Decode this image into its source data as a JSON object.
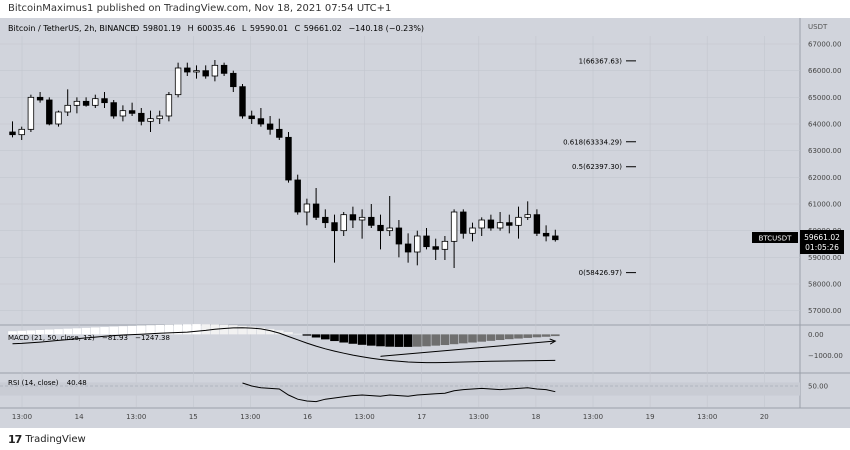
{
  "header": {
    "published": "BitcoinMaximus1 published on TradingView.com, Nov 18, 2021 07:54 UTC+1"
  },
  "chart_data": {
    "type": "candlestick",
    "symbol_line": "Bitcoin / TetherUS, 2h, BINANCE",
    "ohlc": {
      "o_label": "O",
      "o": "59801.19",
      "h_label": "H",
      "h": "60035.46",
      "l_label": "L",
      "l": "59590.01",
      "c_label": "C",
      "c": "59661.02",
      "chg": "−140.18 (−0.23%)"
    },
    "currency": "USDT",
    "price_axis": {
      "ticks": [
        57000,
        58000,
        59000,
        60000,
        61000,
        62000,
        63000,
        64000,
        65000,
        66000,
        67000
      ],
      "labels": [
        "57000.00",
        "58000.00",
        "59000.00",
        "60000.00",
        "61000.00",
        "62000.00",
        "63000.00",
        "64000.00",
        "65000.00",
        "66000.00",
        "67000.00"
      ],
      "min": 56500,
      "max": 67300
    },
    "price_tag": {
      "symbol": "BTCUSDT",
      "value": "59661.02",
      "countdown": "01:05:26"
    },
    "fib_levels": [
      {
        "label": "1(66367.63)",
        "price": 66367.63
      },
      {
        "label": "0.618(63334.29)",
        "price": 63334.29
      },
      {
        "label": "0.5(62397.30)",
        "price": 62397.3
      },
      {
        "label": "0(58426.97)",
        "price": 58426.97
      }
    ],
    "time_axis": [
      "13:00",
      "14",
      "13:00",
      "15",
      "13:00",
      "16",
      "13:00",
      "17",
      "13:00",
      "18",
      "13:00",
      "19",
      "13:00",
      "20"
    ],
    "candles": [
      [
        63700,
        64100,
        63500,
        63600
      ],
      [
        63600,
        63900,
        63400,
        63800
      ],
      [
        63800,
        65100,
        63700,
        65000
      ],
      [
        65000,
        65200,
        64800,
        64900
      ],
      [
        64900,
        65000,
        63950,
        64000
      ],
      [
        64000,
        64500,
        63900,
        64450
      ],
      [
        64450,
        65300,
        64300,
        64700
      ],
      [
        64700,
        65000,
        64400,
        64850
      ],
      [
        64850,
        65000,
        64650,
        64700
      ],
      [
        64700,
        65100,
        64600,
        64950
      ],
      [
        64950,
        65200,
        64600,
        64800
      ],
      [
        64800,
        64900,
        64200,
        64300
      ],
      [
        64300,
        64700,
        64100,
        64500
      ],
      [
        64500,
        64800,
        64300,
        64400
      ],
      [
        64400,
        64600,
        63950,
        64100
      ],
      [
        64100,
        64500,
        63700,
        64200
      ],
      [
        64200,
        64500,
        64000,
        64300
      ],
      [
        64300,
        65200,
        64100,
        65100
      ],
      [
        65100,
        66300,
        65000,
        66100
      ],
      [
        66100,
        66300,
        65800,
        65950
      ],
      [
        65950,
        66200,
        65700,
        66000
      ],
      [
        66000,
        66200,
        65700,
        65800
      ],
      [
        65800,
        66400,
        65600,
        66200
      ],
      [
        66200,
        66300,
        65800,
        65900
      ],
      [
        65900,
        66000,
        65200,
        65400
      ],
      [
        65400,
        65500,
        64200,
        64300
      ],
      [
        64300,
        64500,
        64000,
        64200
      ],
      [
        64200,
        64600,
        63900,
        64000
      ],
      [
        64000,
        64300,
        63600,
        63800
      ],
      [
        63800,
        64200,
        63400,
        63500
      ],
      [
        63500,
        63700,
        61800,
        61900
      ],
      [
        61900,
        62100,
        60600,
        60700
      ],
      [
        60700,
        61200,
        60200,
        61000
      ],
      [
        61000,
        61600,
        60400,
        60500
      ],
      [
        60500,
        60800,
        60100,
        60300
      ],
      [
        60300,
        60600,
        58800,
        60000
      ],
      [
        60000,
        60700,
        59800,
        60600
      ],
      [
        60600,
        60900,
        60100,
        60400
      ],
      [
        60400,
        60800,
        59700,
        60500
      ],
      [
        60500,
        61000,
        60100,
        60200
      ],
      [
        60200,
        60600,
        59300,
        60000
      ],
      [
        60000,
        61300,
        59800,
        60100
      ],
      [
        60100,
        60400,
        59000,
        59500
      ],
      [
        59500,
        59900,
        58800,
        59200
      ],
      [
        59200,
        60000,
        58700,
        59800
      ],
      [
        59800,
        60100,
        59300,
        59400
      ],
      [
        59400,
        59700,
        58900,
        59300
      ],
      [
        59300,
        59800,
        58900,
        59600
      ],
      [
        59600,
        60800,
        58600,
        60700
      ],
      [
        60700,
        60800,
        59700,
        59900
      ],
      [
        59900,
        60300,
        59600,
        60100
      ],
      [
        60100,
        60500,
        59800,
        60400
      ],
      [
        60400,
        60600,
        60000,
        60100
      ],
      [
        60100,
        60700,
        60000,
        60300
      ],
      [
        60300,
        60600,
        59900,
        60200
      ],
      [
        60200,
        60900,
        59700,
        60500
      ],
      [
        60500,
        61100,
        60400,
        60600
      ],
      [
        60600,
        60800,
        59800,
        59900
      ],
      [
        59900,
        60200,
        59600,
        59800
      ],
      [
        59801.19,
        60035.46,
        59590.01,
        59661.02
      ]
    ],
    "macd": {
      "label": "MACD (21, 50, close, 12)",
      "value1": "−81.93",
      "value2": "−1247.38",
      "ticks": [
        "0.00",
        "−1000.00"
      ],
      "tick_values": [
        0,
        -1000
      ],
      "range": [
        -1800,
        400
      ],
      "hist": [
        150,
        170,
        190,
        210,
        230,
        250,
        270,
        290,
        310,
        330,
        350,
        370,
        390,
        410,
        430,
        440,
        450,
        460,
        470,
        480,
        490,
        480,
        470,
        460,
        440,
        410,
        370,
        320,
        260,
        190,
        110,
        30,
        -60,
        -150,
        -240,
        -320,
        -390,
        -450,
        -500,
        -540,
        -570,
        -590,
        -600,
        -600,
        -590,
        -570,
        -540,
        -510,
        -470,
        -430,
        -390,
        -350,
        -310,
        -270,
        -230,
        -200,
        -170,
        -140,
        -115,
        -82
      ],
      "line": [
        -450,
        -430,
        -400,
        -370,
        -330,
        -290,
        -250,
        -210,
        -170,
        -130,
        -90,
        -60,
        -30,
        -10,
        10,
        30,
        50,
        70,
        90,
        110,
        150,
        190,
        240,
        280,
        310,
        320,
        300,
        260,
        180,
        60,
        -100,
        -260,
        -420,
        -560,
        -690,
        -800,
        -900,
        -990,
        -1070,
        -1140,
        -1200,
        -1250,
        -1290,
        -1320,
        -1340,
        -1350,
        -1350,
        -1345,
        -1335,
        -1320,
        -1310,
        -1300,
        -1290,
        -1280,
        -1275,
        -1270,
        -1262,
        -1256,
        -1250,
        -1247
      ]
    },
    "macd_annotation": {
      "from": [
        40,
        -1050
      ],
      "to": [
        59,
        -320
      ]
    },
    "rsi": {
      "label": "RSI (14, close)",
      "value": "40.48",
      "tick": "50.00",
      "tick_value": 50,
      "range": [
        15,
        70
      ],
      "band_top": 56,
      "band_bottom": 34,
      "visible_from": 25,
      "values": [
        58,
        58,
        57,
        56,
        55,
        55,
        56,
        57,
        58,
        59,
        58,
        57,
        56,
        55,
        54,
        54,
        55,
        56,
        57,
        58,
        57,
        56,
        55,
        55,
        60,
        55,
        50,
        47,
        46,
        45,
        35,
        28,
        25,
        24,
        28,
        30,
        32,
        34,
        35,
        34,
        33,
        35,
        34,
        33,
        35,
        36,
        37,
        38,
        42,
        44,
        45,
        46,
        45,
        44,
        45,
        46,
        47,
        45,
        44,
        40.48
      ]
    },
    "colors": {
      "background": "#d1d4dc",
      "bull": "#ffffff",
      "bear": "#000000",
      "grid": "#c3c6ce",
      "fib_line": "#000000"
    }
  },
  "footer": {
    "brand": "TradingView"
  }
}
